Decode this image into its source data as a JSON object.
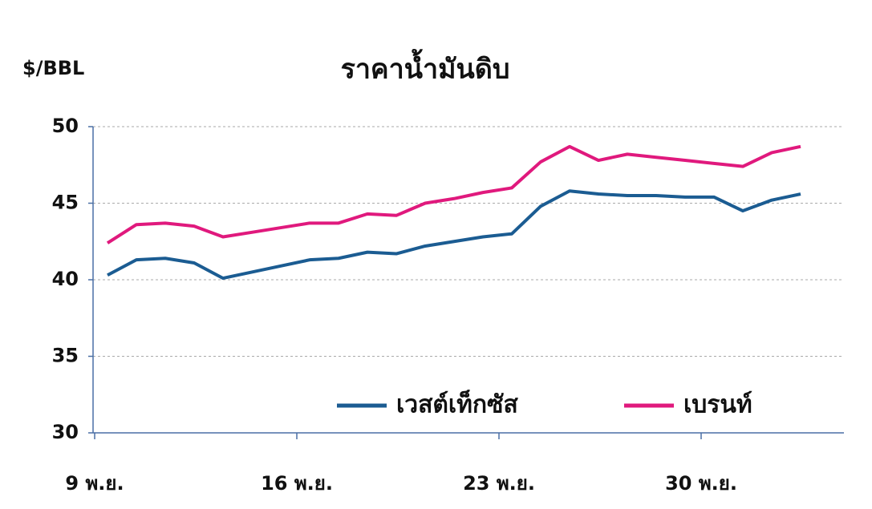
{
  "chart_data": {
    "type": "line",
    "title": "ราคาน้ำมันดิบ",
    "y_label": "$/BBL",
    "categories": [
      "9 พ.ย.",
      null,
      null,
      null,
      null,
      null,
      null,
      "16 พ.ย.",
      null,
      null,
      null,
      null,
      null,
      null,
      "23 พ.ย.",
      null,
      null,
      null,
      null,
      null,
      null,
      "30 พ.ย.",
      null,
      null,
      null
    ],
    "series": [
      {
        "name": "เวสต์เท็กซัส",
        "color": "#1b5c92",
        "values": [
          40.3,
          41.3,
          41.4,
          41.1,
          40.1,
          40.5,
          40.9,
          41.3,
          41.4,
          41.8,
          41.7,
          42.2,
          42.5,
          42.8,
          43.0,
          44.8,
          45.8,
          45.6,
          45.5,
          45.5,
          45.4,
          45.4,
          44.5,
          45.2,
          45.6
        ]
      },
      {
        "name": "เบรนท์",
        "color": "#e0197d",
        "values": [
          42.4,
          43.6,
          43.7,
          43.5,
          42.8,
          43.1,
          43.4,
          43.7,
          43.7,
          44.3,
          44.2,
          45.0,
          45.3,
          45.7,
          46.0,
          47.7,
          48.7,
          47.8,
          48.2,
          48.0,
          47.8,
          47.6,
          47.4,
          48.3,
          48.7
        ]
      }
    ],
    "ylim": [
      30,
      50
    ],
    "yticks": [
      30,
      35,
      40,
      45,
      50
    ],
    "grid": true,
    "legend": "lower right"
  }
}
